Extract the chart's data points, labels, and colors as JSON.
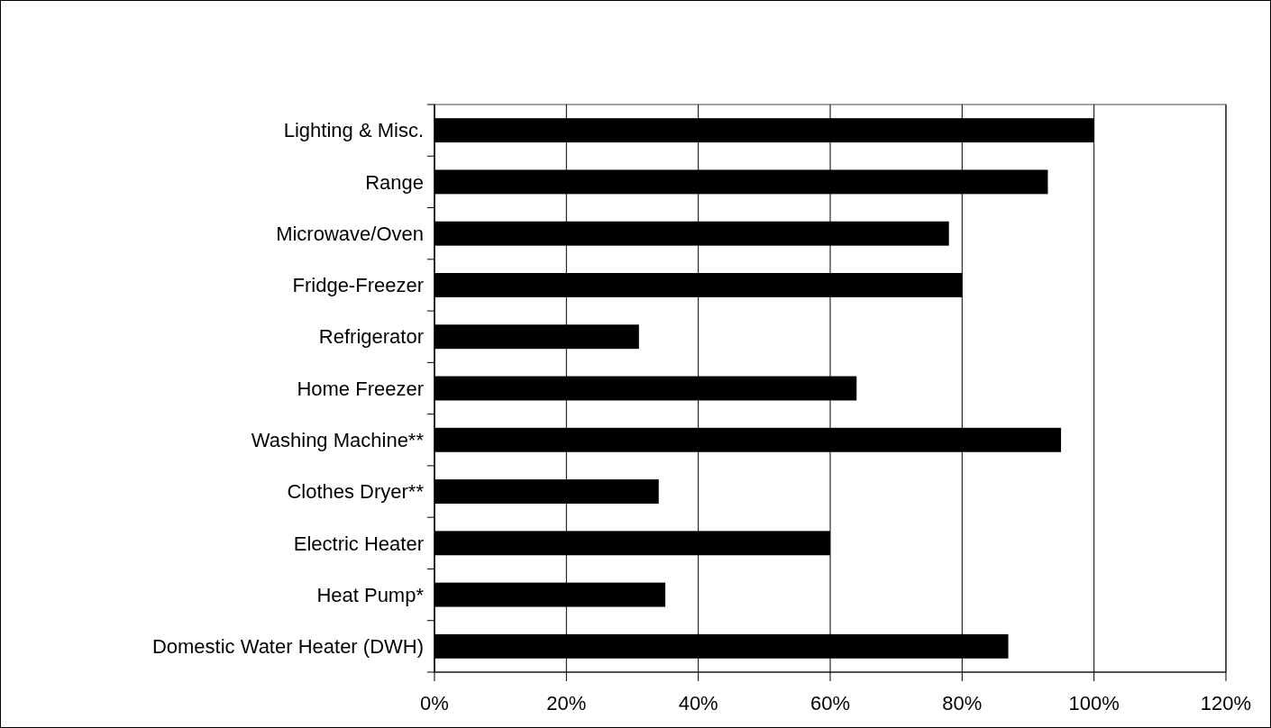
{
  "chart_data": {
    "type": "bar",
    "orientation": "horizontal",
    "categories": [
      "Lighting & Misc.",
      "Range",
      "Microwave/Oven",
      "Fridge-Freezer",
      "Refrigerator",
      "Home Freezer",
      "Washing Machine**",
      "Clothes Dryer**",
      "Electric Heater",
      "Heat Pump*",
      "Domestic Water Heater (DWH)"
    ],
    "values": [
      100,
      93,
      78,
      80,
      31,
      64,
      95,
      34,
      60,
      35,
      87
    ],
    "color": "#000000",
    "xlim": [
      0,
      120
    ],
    "xticks": [
      {
        "value": 0,
        "label": "0%"
      },
      {
        "value": 20,
        "label": "20%"
      },
      {
        "value": 40,
        "label": "40%"
      },
      {
        "value": 60,
        "label": "60%"
      },
      {
        "value": 80,
        "label": "80%"
      },
      {
        "value": 100,
        "label": "100%"
      },
      {
        "value": 120,
        "label": "120%"
      }
    ],
    "grid": "x"
  }
}
